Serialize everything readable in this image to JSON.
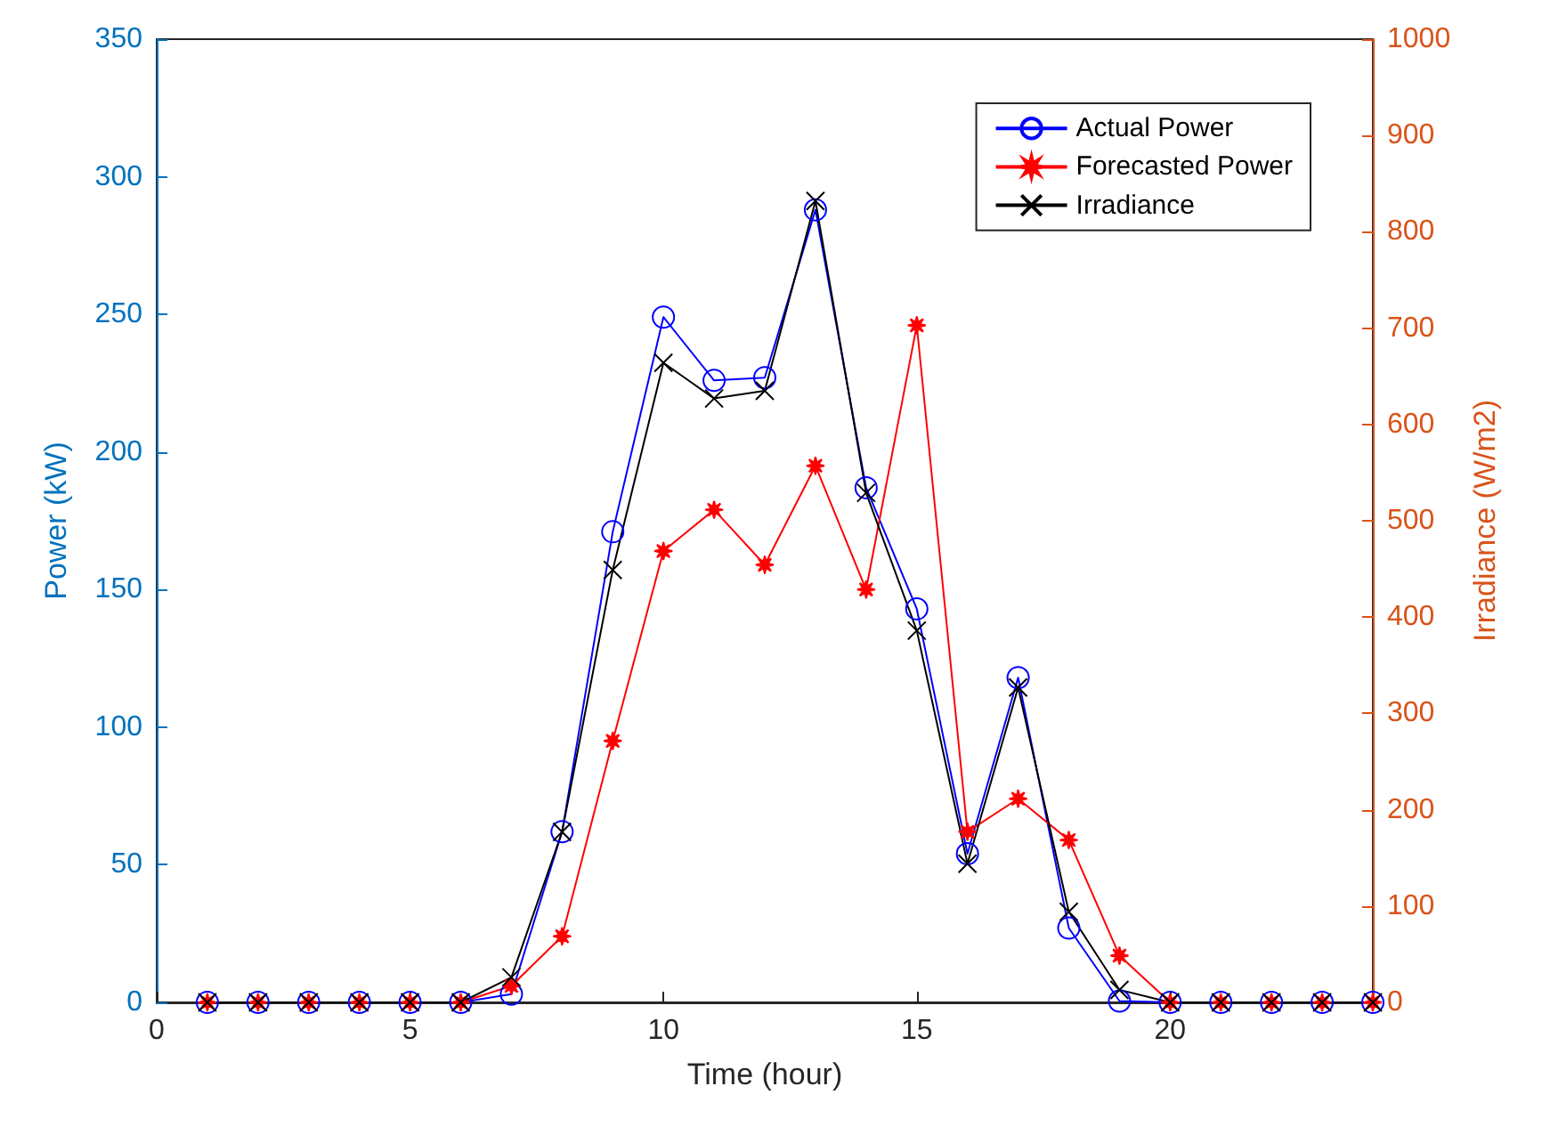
{
  "chart_data": {
    "type": "line",
    "xlabel": "Time (hour)",
    "ylabel": "Power (kW)",
    "y2label": "Irradiance (W/m2)",
    "x": [
      1,
      2,
      3,
      4,
      5,
      6,
      7,
      8,
      9,
      10,
      11,
      12,
      13,
      14,
      15,
      16,
      17,
      18,
      19,
      20,
      21,
      22,
      23,
      24
    ],
    "xlim": [
      0,
      24
    ],
    "xticks": [
      0,
      5,
      10,
      15,
      20
    ],
    "ylim": [
      0,
      350
    ],
    "yticks": [
      0,
      50,
      100,
      150,
      200,
      250,
      300,
      350
    ],
    "y2lim": [
      0,
      1000
    ],
    "y2ticks": [
      0,
      100,
      200,
      300,
      400,
      500,
      600,
      700,
      800,
      900,
      1000
    ],
    "grid": false,
    "legend": "top right",
    "line_style": "solid",
    "series": [
      {
        "name": "Actual Power",
        "color": "#0000ff",
        "marker": "circle",
        "values": [
          0,
          0,
          0,
          0,
          0,
          0,
          3,
          62,
          171,
          249,
          226,
          227,
          288,
          187,
          143,
          54,
          118,
          27,
          0.5,
          0,
          0,
          0,
          0,
          0
        ]
      },
      {
        "name": "Forecasted Power",
        "color": "#ff0000",
        "marker": "star",
        "values": [
          0,
          0,
          0,
          0,
          0,
          0,
          6,
          24,
          95,
          164,
          179,
          159,
          195,
          150,
          246,
          62,
          74,
          59,
          17,
          0,
          0,
          0,
          0,
          0
        ]
      },
      {
        "name": "Irradiance",
        "color": "#000000",
        "marker": "cross",
        "axis": "y2",
        "values": [
          0,
          0,
          0,
          0,
          0,
          0,
          26,
          177,
          449,
          664,
          627,
          635,
          832,
          529,
          386,
          144,
          327,
          94,
          13,
          0,
          0,
          0,
          0,
          0
        ]
      }
    ]
  }
}
